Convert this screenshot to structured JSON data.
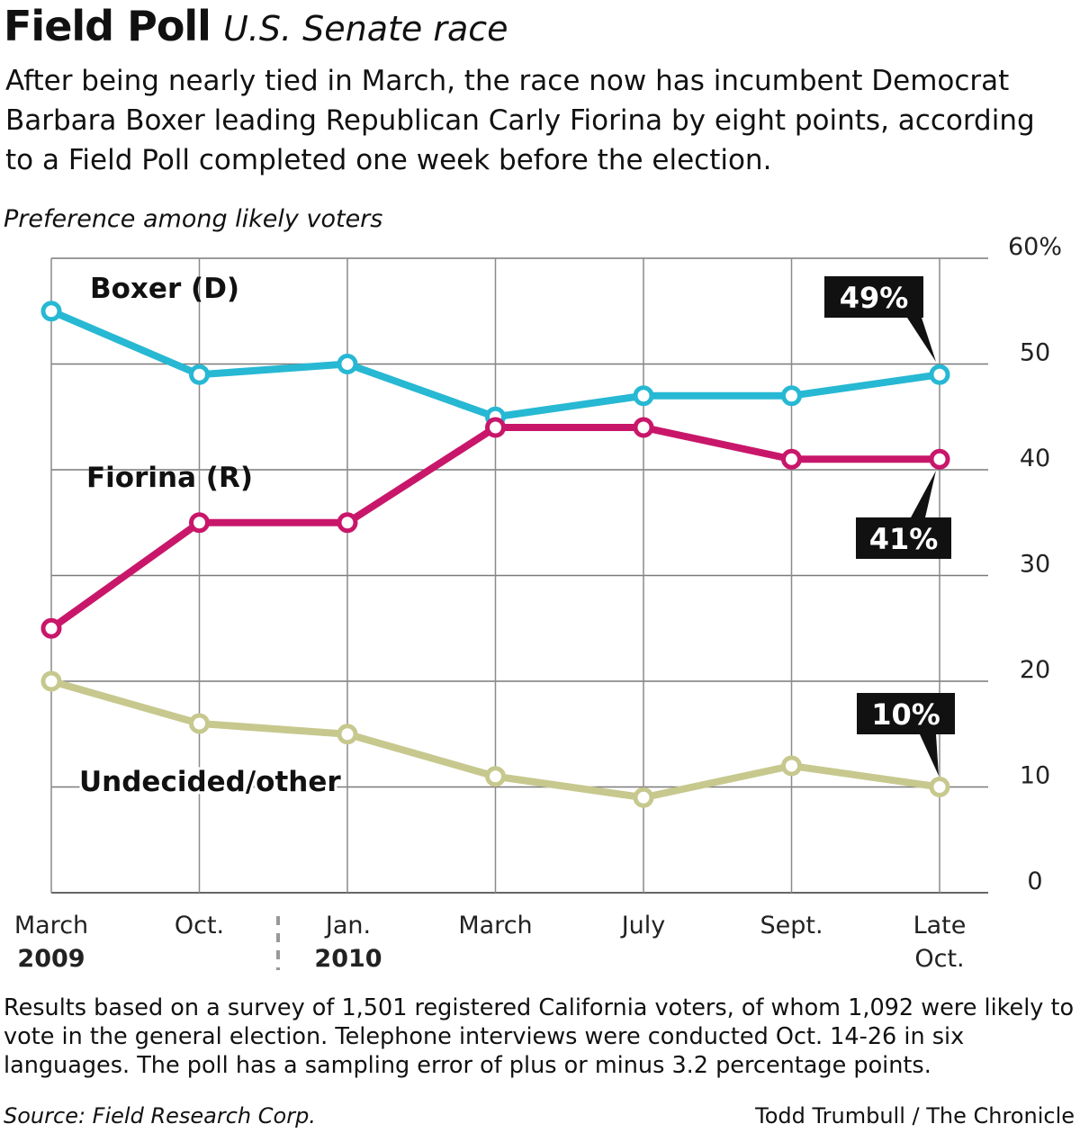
{
  "header": {
    "title": "Field Poll",
    "subtitle": "U.S. Senate race",
    "dek": "After being nearly tied in March, the race now has incumbent Democrat Barbara Boxer leading Republican Carly Fiorina by eight points, according to a Field Poll completed one week before the election."
  },
  "chart_data": {
    "type": "line",
    "ylabel": "Preference among likely voters",
    "ylim": [
      0,
      60
    ],
    "yticks": [
      "0",
      "10",
      "20",
      "30",
      "40",
      "50",
      "60%"
    ],
    "x": [
      "March 2009",
      "Oct.",
      "Jan. 2010",
      "March",
      "July",
      "Sept.",
      "Late Oct."
    ],
    "x_labels": [
      {
        "line1": "March",
        "line2": "2009"
      },
      {
        "line1": "Oct.",
        "line2": ""
      },
      {
        "line1": "Jan.",
        "line2": "2010"
      },
      {
        "line1": "March",
        "line2": ""
      },
      {
        "line1": "July",
        "line2": ""
      },
      {
        "line1": "Sept.",
        "line2": ""
      },
      {
        "line1": "Late",
        "line2": "Oct."
      }
    ],
    "grid": true,
    "series": [
      {
        "name": "Boxer (D)",
        "color": "#27b8d3",
        "values": [
          55,
          49,
          50,
          45,
          47,
          47,
          49
        ],
        "callout": "49%"
      },
      {
        "name": "Fiorina (R)",
        "color": "#c8176a",
        "values": [
          25,
          35,
          35,
          44,
          44,
          41,
          41
        ],
        "callout": "41%"
      },
      {
        "name": "Undecided/other",
        "color": "#c7c88e",
        "values": [
          20,
          16,
          15,
          11,
          9,
          12,
          10
        ],
        "callout": "10%"
      }
    ]
  },
  "footer": {
    "notes": "Results based on a survey of 1,501 registered California voters, of whom 1,092 were likely to vote in the general election. Telephone interviews were conducted Oct. 14-26 in six languages. The poll has a sampling error of plus or minus 3.2 percentage points.",
    "source": "Source: Field Research Corp.",
    "credit": "Todd Trumbull / The Chronicle"
  }
}
